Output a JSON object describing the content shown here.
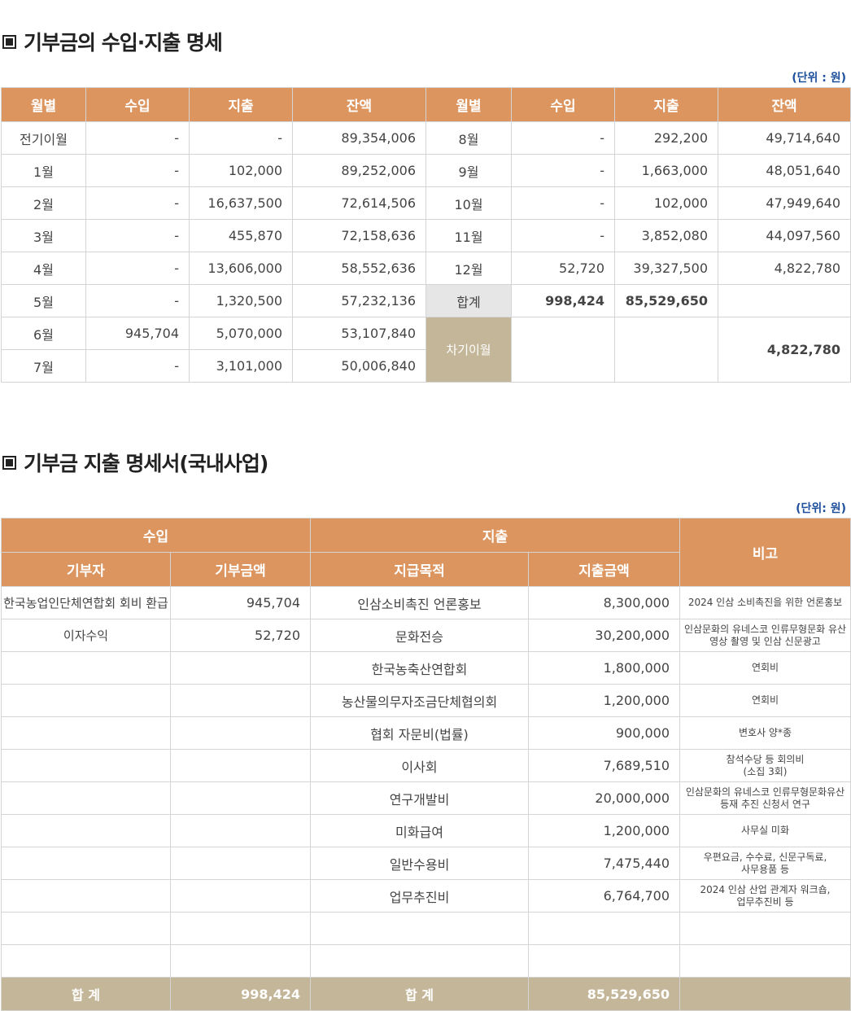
{
  "section1": {
    "title": "기부금의 수입·지출 명세",
    "unit": "(단위 :  원)",
    "headers": [
      "월별",
      "수입",
      "지출",
      "잔액",
      "월별",
      "수입",
      "지출",
      "잔액"
    ],
    "left_rows": [
      {
        "month": "전기이월",
        "income": "-",
        "expense": "-",
        "balance": "89,354,006"
      },
      {
        "month": "1월",
        "income": "-",
        "expense": "102,000",
        "balance": "89,252,006"
      },
      {
        "month": "2월",
        "income": "-",
        "expense": "16,637,500",
        "balance": "72,614,506"
      },
      {
        "month": "3월",
        "income": "-",
        "expense": "455,870",
        "balance": "72,158,636"
      },
      {
        "month": "4월",
        "income": "-",
        "expense": "13,606,000",
        "balance": "58,552,636"
      },
      {
        "month": "5월",
        "income": "-",
        "expense": "1,320,500",
        "balance": "57,232,136"
      },
      {
        "month": "6월",
        "income": "945,704",
        "expense": "5,070,000",
        "balance": "53,107,840"
      },
      {
        "month": "7월",
        "income": "-",
        "expense": "3,101,000",
        "balance": "50,006,840"
      }
    ],
    "right_rows": [
      {
        "month": "8월",
        "income": "-",
        "expense": "292,200",
        "balance": "49,714,640"
      },
      {
        "month": "9월",
        "income": "-",
        "expense": "1,663,000",
        "balance": "48,051,640"
      },
      {
        "month": "10월",
        "income": "-",
        "expense": "102,000",
        "balance": "47,949,640"
      },
      {
        "month": "11월",
        "income": "-",
        "expense": "3,852,080",
        "balance": "44,097,560"
      },
      {
        "month": "12월",
        "income": "52,720",
        "expense": "39,327,500",
        "balance": "4,822,780"
      }
    ],
    "total": {
      "label": "합계",
      "income": "998,424",
      "expense": "85,529,650"
    },
    "carry": {
      "label": "차기이월",
      "balance": "4,822,780"
    }
  },
  "section2": {
    "title": "기부금 지출 명세서(국내사업)",
    "unit": "(단위:  원)",
    "group_income": "수입",
    "group_expense": "지출",
    "remark": "비고",
    "sub_headers": [
      "기부자",
      "기부금액",
      "지급목적",
      "지출금액"
    ],
    "rows": [
      {
        "donor": "한국농업인단체연합회 회비 환급",
        "amount": "945,704",
        "purpose": "인삼소비촉진 언론홍보",
        "expense": "8,300,000",
        "note": "2024 인삼 소비촉진을 위한 언론홍보"
      },
      {
        "donor": "이자수익",
        "amount": "52,720",
        "purpose": "문화전승",
        "expense": "30,200,000",
        "note": "인삼문화의 유네스코 인류무형문화 유산\n영상 촬영 및 인삼 신문광고"
      },
      {
        "donor": "",
        "amount": "",
        "purpose": "한국농축산연합회",
        "expense": "1,800,000",
        "note": "연회비"
      },
      {
        "donor": "",
        "amount": "",
        "purpose": "농산물의무자조금단체협의회",
        "expense": "1,200,000",
        "note": "연회비"
      },
      {
        "donor": "",
        "amount": "",
        "purpose": "협회 자문비(법률)",
        "expense": "900,000",
        "note": "변호사 양*종"
      },
      {
        "donor": "",
        "amount": "",
        "purpose": "이사회",
        "expense": "7,689,510",
        "note": "참석수당 등 회의비\n(소집 3회)"
      },
      {
        "donor": "",
        "amount": "",
        "purpose": "연구개발비",
        "expense": "20,000,000",
        "note": "인삼문화의 유네스코 인류무형문화유산\n등재 추진 신청서 연구"
      },
      {
        "donor": "",
        "amount": "",
        "purpose": "미화급여",
        "expense": "1,200,000",
        "note": "사무실 미화"
      },
      {
        "donor": "",
        "amount": "",
        "purpose": "일반수용비",
        "expense": "7,475,440",
        "note": "우편요금, 수수료, 신문구독료,\n사무용품 등"
      },
      {
        "donor": "",
        "amount": "",
        "purpose": "업무추진비",
        "expense": "6,764,700",
        "note": "2024 인삼 산업 관계자 워크숍,\n업무추진비 등"
      },
      {
        "donor": "",
        "amount": "",
        "purpose": "",
        "expense": "",
        "note": ""
      },
      {
        "donor": "",
        "amount": "",
        "purpose": "",
        "expense": "",
        "note": ""
      }
    ],
    "footer": {
      "income_label": "합 계",
      "income_total": "998,424",
      "expense_label": "합 계",
      "expense_total": "85,529,650",
      "note": ""
    }
  }
}
